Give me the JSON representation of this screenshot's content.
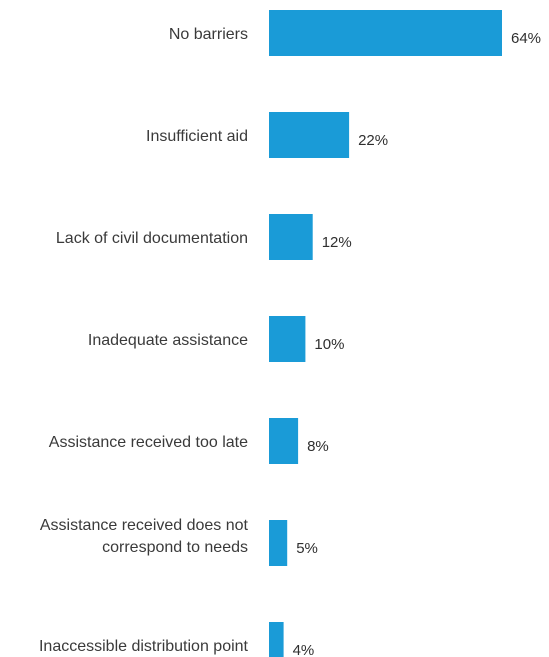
{
  "chart_data": {
    "type": "bar",
    "orientation": "horizontal",
    "categories": [
      [
        "No barriers"
      ],
      [
        "Insufficient aid"
      ],
      [
        "Lack of civil documentation"
      ],
      [
        "Inadequate assistance"
      ],
      [
        "Assistance received too late"
      ],
      [
        "Assistance received does not",
        "correspond to needs"
      ],
      [
        "Inaccessible distribution point"
      ]
    ],
    "values": [
      64,
      22,
      12,
      10,
      8,
      5,
      4
    ],
    "value_labels": [
      "64%",
      "22%",
      "12%",
      "10%",
      "8%",
      "5%",
      "4%"
    ],
    "unit": "%",
    "xlim": [
      0,
      64
    ],
    "grid": false,
    "legend": "none",
    "bar_color": "#1a9bd7"
  }
}
